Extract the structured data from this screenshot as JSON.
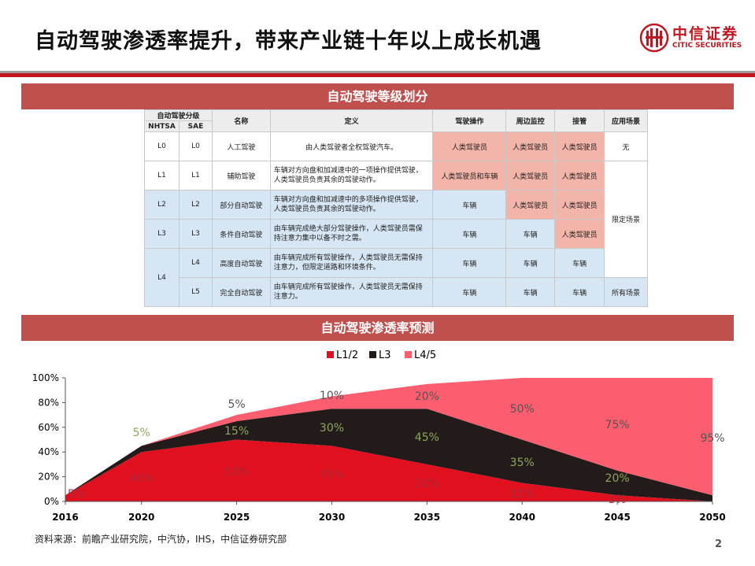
{
  "header": {
    "title": "自动驾驶渗透率提升，带来产业链十年以上成长机遇",
    "logo_cn": "中信证券",
    "logo_en": "CITIC SECURITIES"
  },
  "section1": {
    "title": "自动驾驶等级划分"
  },
  "table": {
    "headers": {
      "level_group": "自动驾驶分级",
      "nhtsa": "NHTSA",
      "sae": "SAE",
      "name": "名称",
      "definition": "定义",
      "operation": "驾驶操作",
      "monitoring": "周边监控",
      "takeover": "接管",
      "scenario": "应用场景"
    },
    "rows": [
      {
        "nhtsa": "L0",
        "sae": "L0",
        "name": "人工驾驶",
        "definition": "由人类驾驶者全权驾驶汽车。",
        "operation": "人类驾驶员",
        "monitoring": "人类驾驶员",
        "takeover": "人类驾驶员"
      },
      {
        "nhtsa": "L1",
        "sae": "L1",
        "name": "辅助驾驶",
        "definition": "车辆对方向盘和加减速中的一项操作提供驾驶，人类驾驶员负责其余的驾驶动作。",
        "operation": "人类驾驶员和车辆",
        "monitoring": "人类驾驶员",
        "takeover": "人类驾驶员"
      },
      {
        "nhtsa": "L2",
        "sae": "L2",
        "name": "部分自动驾驶",
        "definition": "车辆对方向盘和加减速中的多项操作提供驾驶，人类驾驶员负责其余的驾驶动作。",
        "operation": "车辆",
        "monitoring": "人类驾驶员",
        "takeover": "人类驾驶员"
      },
      {
        "nhtsa": "L3",
        "sae": "L3",
        "name": "条件自动驾驶",
        "definition": "由车辆完成绝大部分驾驶操作，人类驾驶员需保持注意力集中以备不时之需。",
        "operation": "车辆",
        "monitoring": "车辆",
        "takeover": "人类驾驶员"
      },
      {
        "nhtsa": "L4",
        "sae": "L4",
        "name": "高度自动驾驶",
        "definition": "由车辆完成所有驾驶操作，人类驾驶员无需保持注意力，但限定道路和环境条件。",
        "operation": "车辆",
        "monitoring": "车辆",
        "takeover": "车辆"
      },
      {
        "nhtsa": "",
        "sae": "L5",
        "name": "完全自动驾驶",
        "definition": "由车辆完成所有驾驶操作，人类驾驶员无需保持注意力。",
        "operation": "车辆",
        "monitoring": "车辆",
        "takeover": "车辆"
      }
    ],
    "scenarios": {
      "none": "无",
      "limited": "限定场景",
      "all": "所有场景"
    }
  },
  "section2": {
    "title": "自动驾驶渗透率预测"
  },
  "chart_data": {
    "type": "area",
    "stacked": true,
    "title": "",
    "xlabel": "",
    "ylabel": "",
    "x": [
      2016,
      2020,
      2025,
      2030,
      2035,
      2040,
      2045,
      2050
    ],
    "x_tick_labels": [
      "2016",
      "2020",
      "2025",
      "2030",
      "2035",
      "2040",
      "2045",
      "2050"
    ],
    "ylim": [
      0,
      100
    ],
    "y_ticks": [
      0,
      20,
      40,
      60,
      80,
      100
    ],
    "y_tick_labels": [
      "0%",
      "20%",
      "40%",
      "60%",
      "80%",
      "100%"
    ],
    "grid": false,
    "legend_position": "top-center",
    "series": [
      {
        "name": "L1/2",
        "color": "#e0101e",
        "values": [
          5,
          40,
          50,
          45,
          30,
          15,
          5,
          0
        ],
        "labels": [
          "5%",
          "40%",
          "50%",
          "45%",
          "30%",
          "15%",
          "5%",
          ""
        ]
      },
      {
        "name": "L3",
        "color": "#231a1a",
        "values": [
          0,
          5,
          15,
          30,
          45,
          35,
          20,
          5
        ],
        "labels": [
          "",
          "5%",
          "15%",
          "30%",
          "45%",
          "35%",
          "20%",
          ""
        ]
      },
      {
        "name": "L4/5",
        "color": "#fd5e6f",
        "values": [
          0,
          0,
          5,
          10,
          20,
          50,
          75,
          95
        ],
        "labels": [
          "",
          "",
          "5%",
          "10%",
          "20%",
          "50%",
          "75%",
          "95%"
        ]
      }
    ]
  },
  "footer": {
    "source": "资料来源：前瞻产业研究院，中汽协，IHS，中信证券研究部",
    "page": "2"
  }
}
